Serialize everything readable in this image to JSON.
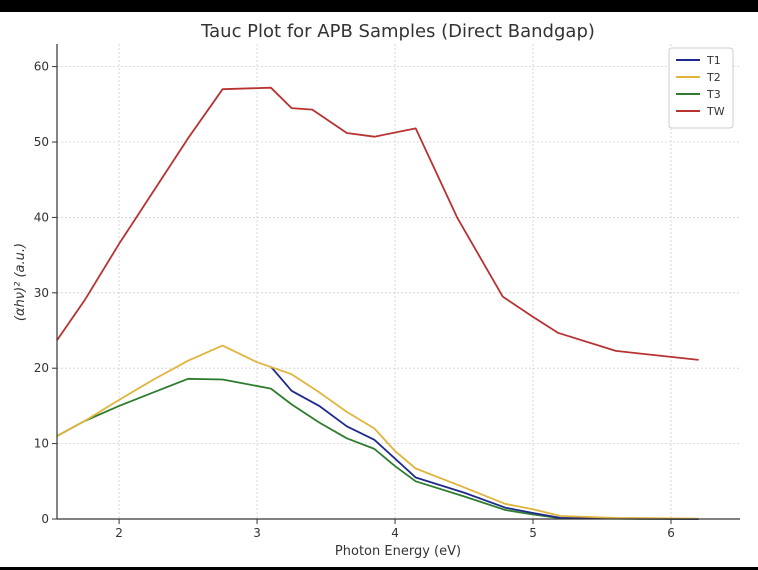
{
  "chart_data": {
    "type": "line",
    "title": "Tauc Plot for APB Samples (Direct Bandgap)",
    "xlabel": "Photon Energy (eV)",
    "ylabel": "(αhν)² (a.u.)",
    "xlim": [
      1.55,
      6.5
    ],
    "ylim": [
      0,
      63
    ],
    "xticks": [
      2,
      3,
      4,
      5,
      6
    ],
    "yticks": [
      0,
      10,
      20,
      30,
      40,
      50,
      60
    ],
    "grid": true,
    "legend_position": "top-right",
    "series": [
      {
        "name": "T1",
        "color": "#1f2a8c",
        "x": [
          3.1,
          3.25,
          3.45,
          3.65,
          3.85,
          4.0,
          4.15,
          4.5,
          4.8,
          5.0,
          5.2,
          5.6,
          6.2
        ],
        "y": [
          20.2,
          17.0,
          15.0,
          12.3,
          10.5,
          8.0,
          5.5,
          3.5,
          1.5,
          0.8,
          0.15,
          0.05,
          0.0
        ]
      },
      {
        "name": "T2",
        "color": "#e0b43c",
        "x": [
          1.55,
          1.75,
          2.0,
          2.25,
          2.5,
          2.75,
          3.0,
          3.25,
          3.45,
          3.65,
          3.85,
          4.0,
          4.15,
          4.5,
          4.8,
          5.0,
          5.2,
          5.6,
          6.2
        ],
        "y": [
          11.0,
          13.0,
          15.8,
          18.5,
          21.0,
          23.0,
          20.8,
          19.2,
          16.8,
          14.2,
          12.0,
          9.0,
          6.7,
          4.2,
          2.0,
          1.3,
          0.4,
          0.15,
          0.05
        ]
      },
      {
        "name": "T3",
        "color": "#2e7d2e",
        "x": [
          1.55,
          1.75,
          2.0,
          2.25,
          2.5,
          2.75,
          3.1,
          3.25,
          3.45,
          3.65,
          3.85,
          4.0,
          4.15,
          4.5,
          4.8,
          5.0,
          5.2,
          5.6,
          6.2
        ],
        "y": [
          11.0,
          13.0,
          15.0,
          16.8,
          18.6,
          18.5,
          17.3,
          15.2,
          12.8,
          10.7,
          9.3,
          7.0,
          5.0,
          3.0,
          1.2,
          0.6,
          0.1,
          0.05,
          0.0
        ]
      },
      {
        "name": "TW",
        "color": "#b83232",
        "x": [
          1.55,
          1.75,
          2.0,
          2.25,
          2.5,
          2.75,
          3.1,
          3.25,
          3.4,
          3.65,
          3.85,
          4.15,
          4.45,
          4.78,
          5.0,
          5.18,
          5.6,
          6.2
        ],
        "y": [
          23.7,
          29.0,
          36.5,
          43.5,
          50.5,
          57.0,
          57.2,
          54.5,
          54.3,
          51.2,
          50.7,
          51.8,
          40.0,
          29.5,
          26.8,
          24.7,
          22.3,
          21.1
        ]
      }
    ]
  }
}
